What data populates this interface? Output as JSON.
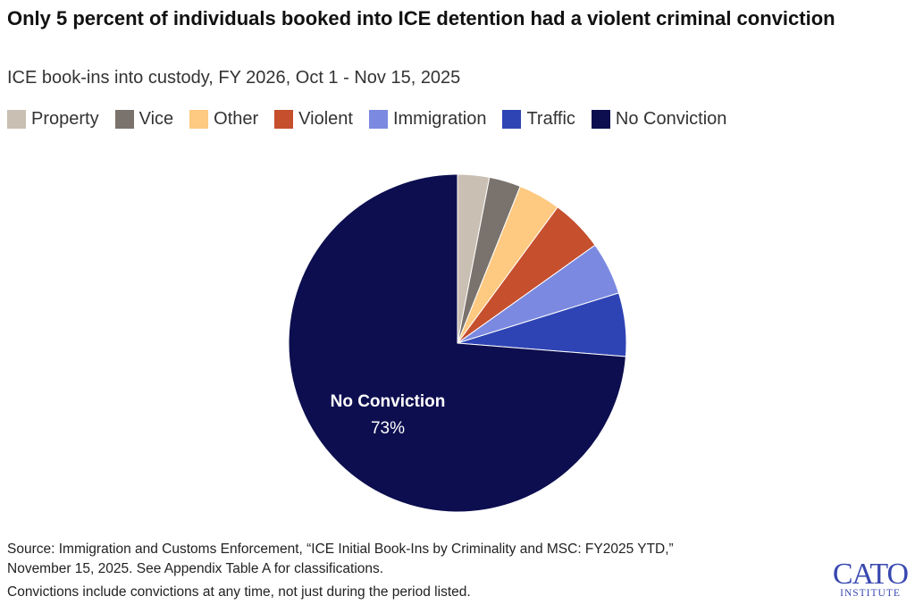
{
  "title": "Only 5 percent of individuals booked into ICE detention had a violent criminal conviction",
  "subtitle": "ICE book-ins into custody, FY 2026, Oct 1 - Nov 15, 2025",
  "source": "Source: Immigration and Customs Enforcement, “ICE Initial Book-Ins by Criminality and MSC: FY2025 YTD,” November 15, 2025. See Appendix Table A for classifications.",
  "note": "Convictions include convictions at any time, not just during the period listed.",
  "logo": {
    "main": "CATO",
    "sub": "INSTITUTE"
  },
  "chart_data": {
    "type": "pie",
    "start": "12 o'clock, clockwise",
    "legend_position": "top",
    "categories": [
      "Property",
      "Vice",
      "Other",
      "Violent",
      "Immigration",
      "Traffic",
      "No Conviction"
    ],
    "values": [
      3,
      3,
      4,
      5,
      5,
      6,
      73
    ],
    "unit": "%",
    "colors": [
      "#c9bfb2",
      "#7a726c",
      "#fec980",
      "#c64f2e",
      "#7b8ae0",
      "#2f44b4",
      "#0d0e4f"
    ],
    "data_label": {
      "category": "No Conviction",
      "value": "73%"
    }
  }
}
